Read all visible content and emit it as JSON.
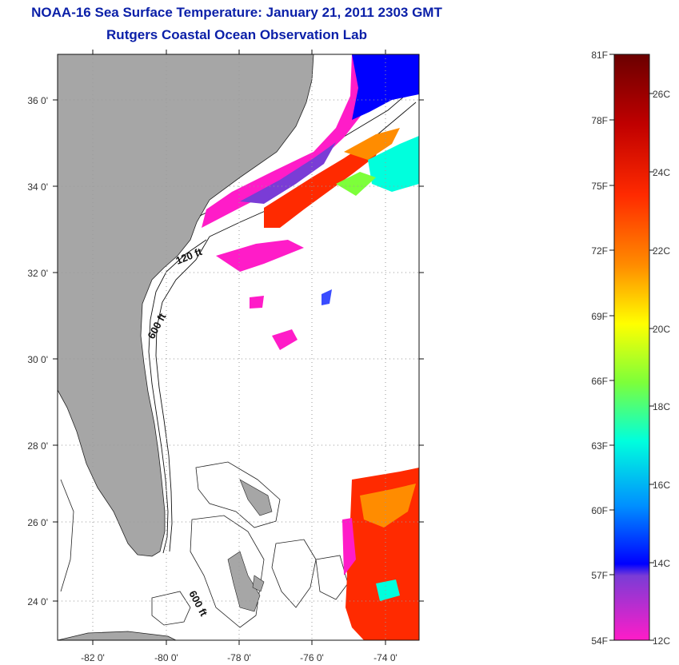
{
  "title": {
    "line1": "NOAA-16 Sea Surface Temperature:  January 21, 2011 2303 GMT",
    "line2": "Rutgers Coastal Ocean Observation Lab"
  },
  "map": {
    "lat_ticks": [
      {
        "value": 36,
        "label": "36 0'"
      },
      {
        "value": 34,
        "label": "34 0'"
      },
      {
        "value": 32,
        "label": "32 0'"
      },
      {
        "value": 30,
        "label": "30 0'"
      },
      {
        "value": 28,
        "label": "28 0'"
      },
      {
        "value": 26,
        "label": "26 0'"
      },
      {
        "value": 24,
        "label": "24 0'"
      }
    ],
    "lon_ticks": [
      {
        "value": -82,
        "label": "-82 0'"
      },
      {
        "value": -80,
        "label": "-80 0'"
      },
      {
        "value": -78,
        "label": "-78 0'"
      },
      {
        "value": -76,
        "label": "-76 0'"
      },
      {
        "value": -74,
        "label": "-74 0'"
      }
    ],
    "contour_labels": [
      "120 ft",
      "600 ft",
      "600 ft"
    ],
    "colors": {
      "land": "#a6a6a6",
      "grid": "#999999"
    }
  },
  "colorbar": {
    "fahrenheit_labels": [
      "81F",
      "78F",
      "75F",
      "72F",
      "69F",
      "66F",
      "63F",
      "60F",
      "57F",
      "54F"
    ],
    "celsius_labels": [
      "26C",
      "24C",
      "22C",
      "20C",
      "18C",
      "16C",
      "14C",
      "12C"
    ],
    "gradient": [
      "#6b0000",
      "#c00000",
      "#ff2a00",
      "#ff8c00",
      "#ffff00",
      "#7dff3a",
      "#00ffdd",
      "#0090ff",
      "#0000ff",
      "#7a3cd6",
      "#ff1cc8"
    ]
  }
}
